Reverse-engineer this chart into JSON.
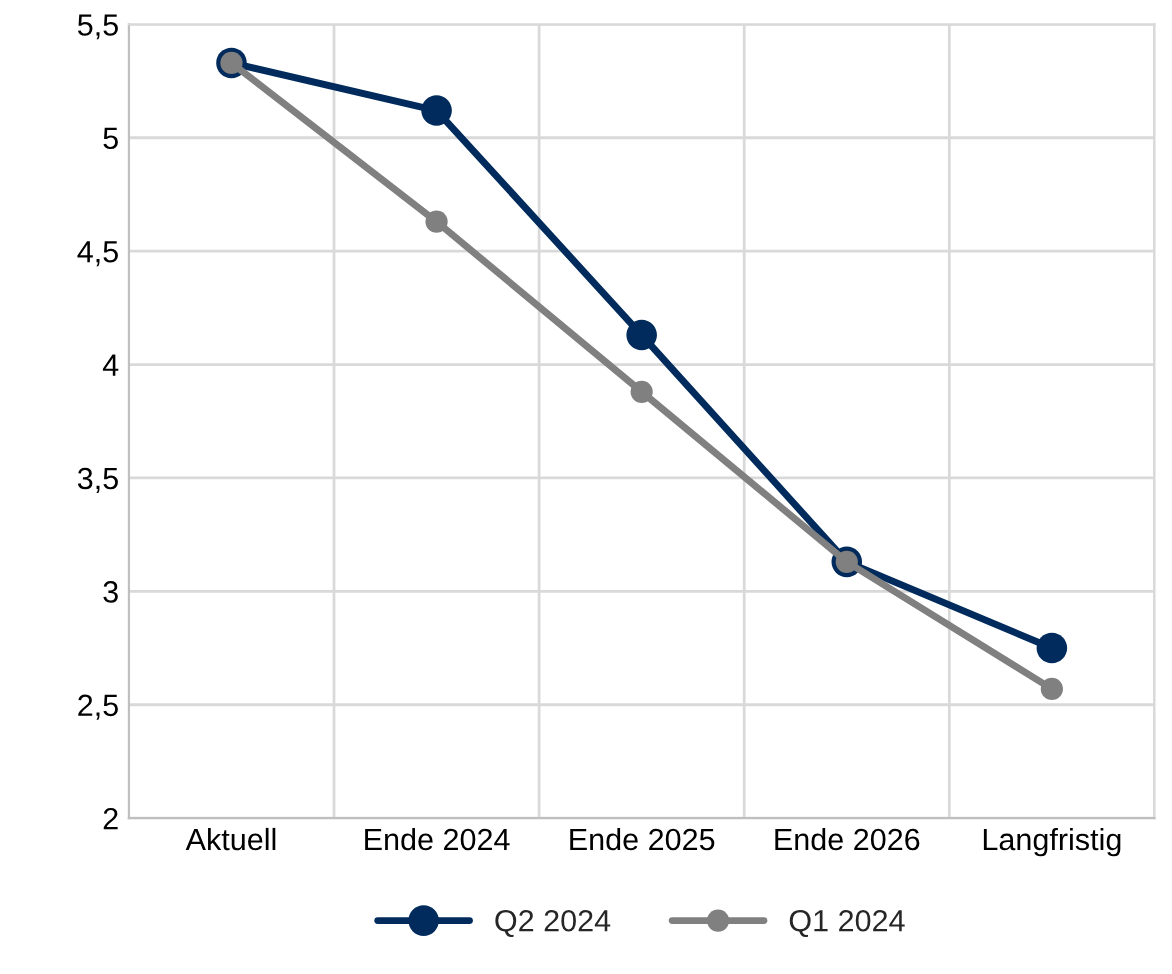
{
  "chart_data": {
    "type": "line",
    "categories": [
      "Aktuell",
      "Ende 2024",
      "Ende 2025",
      "Ende 2026",
      "Langfristig"
    ],
    "series": [
      {
        "name": "Q2 2024",
        "color": "#002b5c",
        "values": [
          5.33,
          5.12,
          4.13,
          3.13,
          2.75
        ]
      },
      {
        "name": "Q1 2024",
        "color": "#808080",
        "values": [
          5.33,
          4.63,
          3.88,
          3.13,
          2.57
        ]
      }
    ],
    "ylim": [
      2,
      5.5
    ],
    "yticks": [
      {
        "value": 2,
        "label": "2"
      },
      {
        "value": 2.5,
        "label": "2,5"
      },
      {
        "value": 3,
        "label": "3"
      },
      {
        "value": 3.5,
        "label": "3,5"
      },
      {
        "value": 4,
        "label": "4"
      },
      {
        "value": 4.5,
        "label": "4,5"
      },
      {
        "value": 5,
        "label": "5"
      },
      {
        "value": 5.5,
        "label": "5,5"
      }
    ],
    "grid": true,
    "legend": "bottom",
    "marker": "circle",
    "line_style": "solid"
  }
}
